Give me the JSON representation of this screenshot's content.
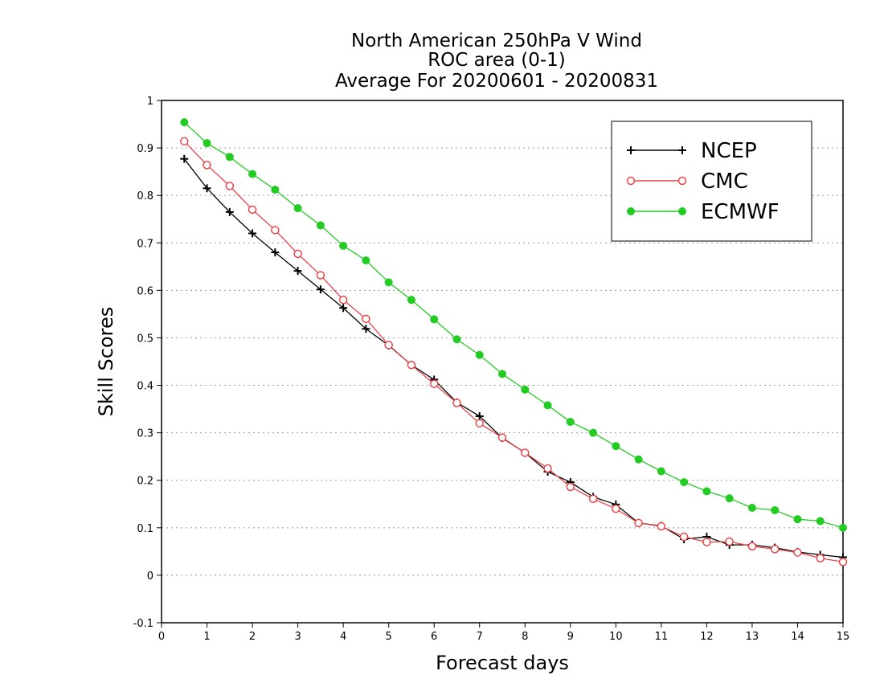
{
  "chart_data": {
    "type": "line",
    "title": "North American 250hPa V Wind",
    "subtitle": [
      "ROC area (0-1)",
      "Average For 20200601 - 20200831"
    ],
    "xlabel": "Forecast days",
    "ylabel": "Skill Scores",
    "xlim": [
      0,
      15
    ],
    "ylim": [
      -0.1,
      1
    ],
    "xticks": [
      "0",
      "1",
      "2",
      "3",
      "4",
      "5",
      "6",
      "7",
      "8",
      "9",
      "10",
      "11",
      "12",
      "13",
      "14",
      "15"
    ],
    "yticks": [
      "-0.1",
      "0",
      "0.1",
      "0.2",
      "0.3",
      "0.4",
      "0.5",
      "0.6",
      "0.7",
      "0.8",
      "0.9",
      "1"
    ],
    "grid": "horizontal dotted",
    "legend_position": "top-right",
    "x": [
      0.5,
      1,
      1.5,
      2,
      2.5,
      3,
      3.5,
      4,
      4.5,
      5,
      5.5,
      6,
      6.5,
      7,
      7.5,
      8,
      8.5,
      9,
      9.5,
      10,
      10.5,
      11,
      11.5,
      12,
      12.5,
      13,
      13.5,
      14,
      14.5,
      15
    ],
    "series": [
      {
        "name": "NCEP",
        "color": "#000000",
        "marker": "plus",
        "values": [
          0.877,
          0.815,
          0.765,
          0.72,
          0.68,
          0.641,
          0.602,
          0.563,
          0.519,
          0.484,
          0.443,
          0.412,
          0.364,
          0.335,
          0.289,
          0.258,
          0.218,
          0.196,
          0.165,
          0.149,
          0.11,
          0.104,
          0.076,
          0.081,
          0.064,
          0.064,
          0.058,
          0.049,
          0.043,
          0.038
        ]
      },
      {
        "name": "CMC",
        "color": "#e8464b",
        "marker": "open-circle",
        "values": [
          0.914,
          0.864,
          0.82,
          0.77,
          0.727,
          0.677,
          0.632,
          0.58,
          0.54,
          0.485,
          0.443,
          0.403,
          0.363,
          0.32,
          0.29,
          0.258,
          0.225,
          0.186,
          0.161,
          0.14,
          0.11,
          0.103,
          0.081,
          0.07,
          0.071,
          0.061,
          0.055,
          0.048,
          0.036,
          0.028
        ]
      },
      {
        "name": "ECMWF",
        "color": "#22cc22",
        "marker": "filled-circle",
        "values": [
          0.954,
          0.91,
          0.881,
          0.845,
          0.812,
          0.773,
          0.737,
          0.694,
          0.663,
          0.617,
          0.58,
          0.539,
          0.497,
          0.464,
          0.424,
          0.391,
          0.358,
          0.323,
          0.3,
          0.272,
          0.244,
          0.219,
          0.196,
          0.177,
          0.162,
          0.142,
          0.137,
          0.118,
          0.114,
          0.1
        ]
      }
    ]
  }
}
